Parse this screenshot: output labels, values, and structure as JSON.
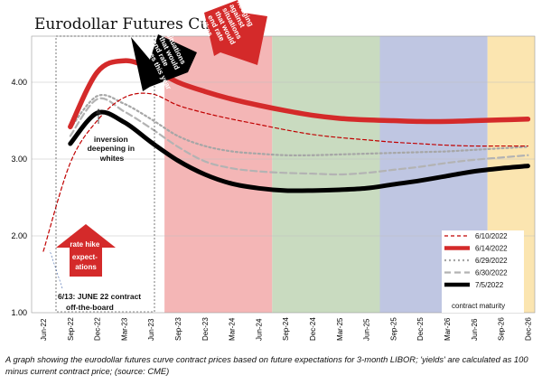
{
  "chart_data": {
    "type": "line",
    "title": "Eurodollar Futures Curve",
    "x_categories": [
      "Jun-22",
      "Sep-22",
      "Dec-22",
      "Mar-23",
      "Jun-23",
      "Sep-23",
      "Dec-23",
      "Mar-24",
      "Jun-24",
      "Sep-24",
      "Dec-24",
      "Mar-25",
      "Jun-25",
      "Sep-25",
      "Dec-25",
      "Mar-26",
      "Jun-26",
      "Sep-26",
      "Dec-26"
    ],
    "y_ticks": [
      "1.00",
      "2.00",
      "3.00",
      "4.00"
    ],
    "ylim": [
      1.0,
      4.6
    ],
    "x_axis_title": "contract maturity",
    "series": [
      {
        "name": "6/10/2022",
        "color": "#c00000",
        "style": "dashed",
        "values": [
          1.8,
          2.95,
          3.5,
          3.8,
          3.85,
          3.7,
          3.6,
          3.52,
          3.45,
          3.38,
          3.32,
          3.28,
          3.25,
          3.22,
          3.2,
          3.18,
          3.17,
          3.17,
          3.17
        ]
      },
      {
        "name": "6/14/2022",
        "color": "#d42a2a",
        "style": "thick",
        "values": [
          null,
          3.42,
          4.13,
          4.28,
          4.18,
          4.0,
          3.88,
          3.78,
          3.7,
          3.63,
          3.57,
          3.53,
          3.51,
          3.5,
          3.49,
          3.49,
          3.5,
          3.51,
          3.52
        ]
      },
      {
        "name": "6/29/2022",
        "color": "#a6a6a6",
        "style": "dotted",
        "values": [
          null,
          3.4,
          3.82,
          3.72,
          3.52,
          3.3,
          3.17,
          3.1,
          3.07,
          3.05,
          3.05,
          3.06,
          3.07,
          3.08,
          3.09,
          3.1,
          3.12,
          3.14,
          3.16
        ]
      },
      {
        "name": "6/30/2022",
        "color": "#b3b3b3",
        "style": "dashed",
        "values": [
          null,
          3.3,
          3.78,
          3.62,
          3.4,
          3.16,
          2.97,
          2.88,
          2.84,
          2.82,
          2.81,
          2.8,
          2.82,
          2.86,
          2.9,
          2.95,
          2.99,
          3.02,
          3.05
        ]
      },
      {
        "name": "7/5/2022",
        "color": "#000000",
        "style": "thick",
        "values": [
          null,
          3.2,
          3.6,
          3.48,
          3.22,
          2.98,
          2.8,
          2.68,
          2.62,
          2.59,
          2.59,
          2.6,
          2.62,
          2.67,
          2.72,
          2.78,
          2.84,
          2.88,
          2.91
        ]
      }
    ],
    "shaded_regions": [
      {
        "from": "Sep-23",
        "to": "Jun-24",
        "color": "#f4b6b6"
      },
      {
        "from": "Sep-24",
        "to": "Jun-25",
        "color": "#c9dbc0"
      },
      {
        "from": "Sep-25",
        "to": "Jun-26",
        "color": "#bfc6e2"
      },
      {
        "from": "Sep-26",
        "to": "Dec-26",
        "color": "#fbe5b0"
      }
    ],
    "annotations": {
      "situations": "situations that would end rate hikes this year",
      "hedging": "hedging against situations that would end rate hikes",
      "inversion": "inversion deepening in whites",
      "rate_hike": "rate hike expectations",
      "contract_note": "6/13: JUNE 22 contract off-the-board"
    }
  },
  "caption": "A graph showing the eurodollar futures curve contract prices based on future expectations for 3-month LIBOR; 'yields' are calculated as 100 minus current contract price; (source: CME)"
}
